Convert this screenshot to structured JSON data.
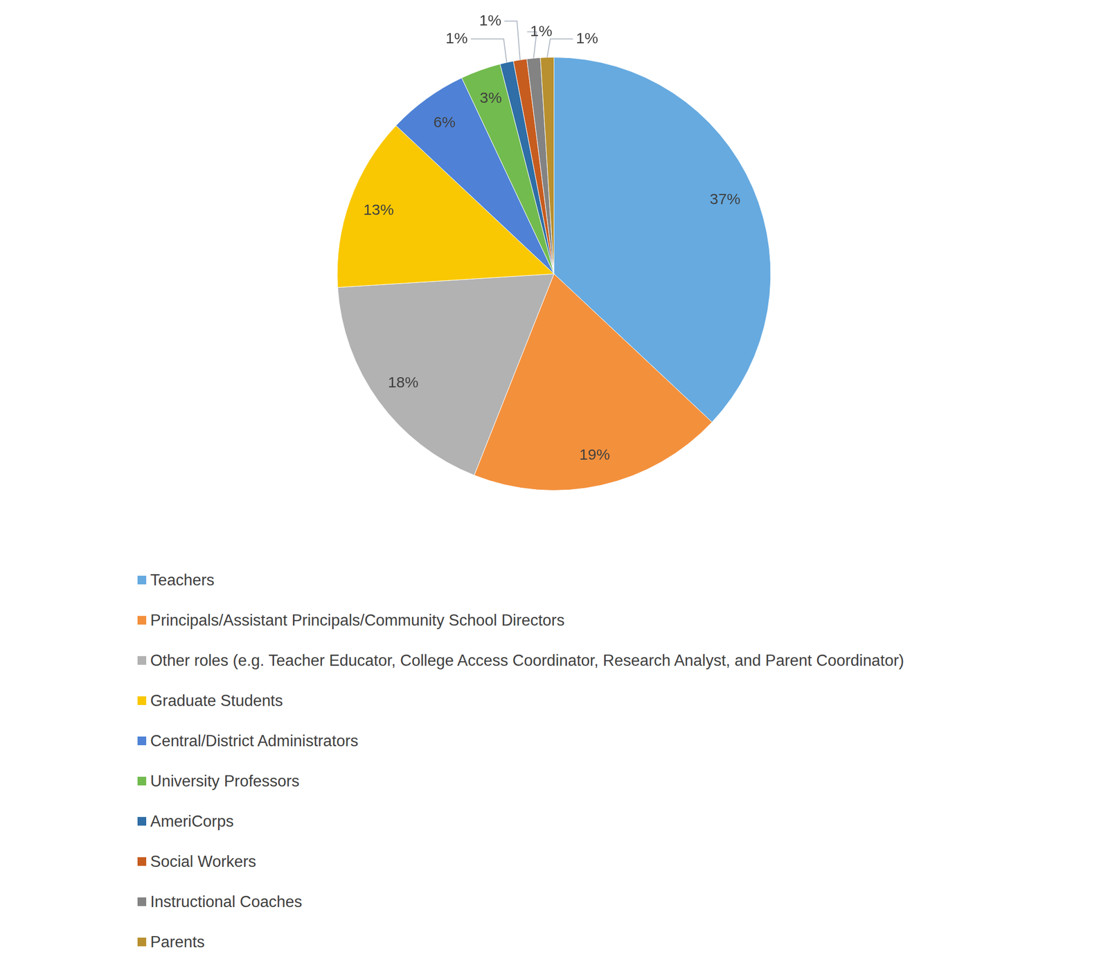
{
  "chart_data": {
    "type": "pie",
    "categories": [
      "Teachers",
      "Principals/Assistant Principals/Community School Directors",
      "Other roles (e.g. Teacher Educator, College Access Coordinator, Research Analyst, and Parent Coordinator)",
      "Graduate Students",
      "Central/District Administrators",
      "University Professors",
      "AmeriCorps",
      "Social Workers",
      "Instructional Coaches",
      "Parents"
    ],
    "values": [
      37,
      19,
      18,
      13,
      6,
      3,
      1,
      1,
      1,
      1
    ],
    "value_labels": [
      "37%",
      "19%",
      "18%",
      "13%",
      "6%",
      "3%",
      "1%",
      "1%",
      "1%",
      "1%"
    ],
    "colors": [
      "#66aae0",
      "#f3903c",
      "#b2b2b2",
      "#f9c802",
      "#4f82d6",
      "#72bb4e",
      "#2f6ea6",
      "#c75c1f",
      "#838383",
      "#b8902f"
    ],
    "legend": "bottom",
    "data_labels": true
  }
}
